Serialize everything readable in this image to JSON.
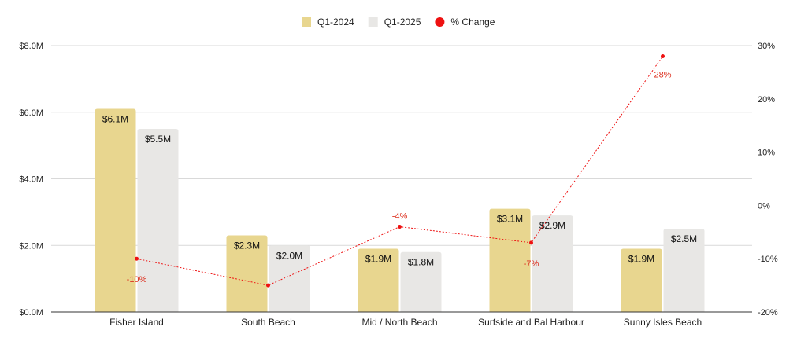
{
  "chart_data": {
    "type": "bar",
    "categories": [
      "Fisher Island",
      "South Beach",
      "Mid / North Beach",
      "Surfside and Bal Harbour",
      "Sunny Isles Beach"
    ],
    "series": [
      {
        "name": "Q1-2024",
        "values": [
          6.1,
          2.3,
          1.9,
          3.1,
          1.9
        ],
        "labels": [
          "$6.1M",
          "$2.3M",
          "$1.9M",
          "$3.1M",
          "$1.9M"
        ],
        "color": "#e8d68f"
      },
      {
        "name": "Q1-2025",
        "values": [
          5.5,
          2.0,
          1.8,
          2.9,
          2.5
        ],
        "labels": [
          "$5.5M",
          "$2.0M",
          "$1.8M",
          "$2.9M",
          "$2.5M"
        ],
        "color": "#e8e7e5"
      },
      {
        "name": "% Change",
        "type": "line",
        "axis": "right",
        "values": [
          -10,
          -15,
          -4,
          -7,
          28
        ],
        "labels": [
          "-10%",
          "",
          "-4%",
          "-7%",
          "28%"
        ],
        "color": "#ee1111"
      }
    ],
    "y_left": {
      "ticks": [
        "$0.0M",
        "$2.0M",
        "$4.0M",
        "$6.0M",
        "$8.0M"
      ],
      "range": [
        0,
        8
      ]
    },
    "y_right": {
      "ticks": [
        "-20%",
        "-10%",
        "0%",
        "10%",
        "20%",
        "30%"
      ],
      "range": [
        -20,
        30
      ]
    },
    "legend": "top-center",
    "grid": true
  }
}
